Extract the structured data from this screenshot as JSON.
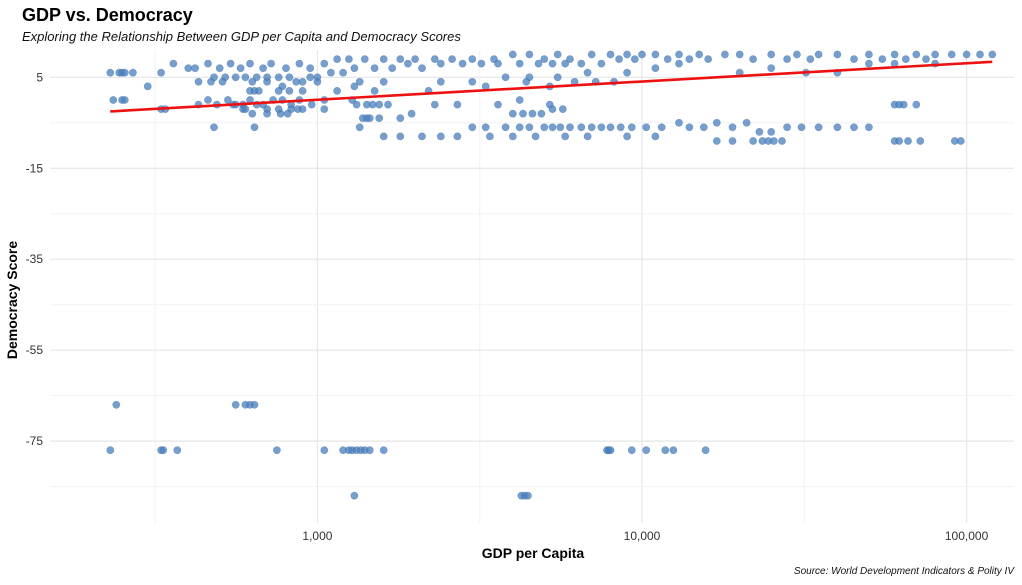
{
  "chart_data": {
    "type": "scatter",
    "title": "GDP vs. Democracy",
    "subtitle": "Exploring the Relationship Between GDP per Capita and Democracy Scores",
    "xlabel": "GDP per Capita",
    "ylabel": "Democracy Score",
    "caption": "Source: World Development Indicators & Polity IV",
    "x_scale": "log10",
    "xlim": [
      150,
      140000
    ],
    "ylim": [
      -93,
      11
    ],
    "x_ticks": [
      1000,
      10000,
      100000
    ],
    "x_tick_labels": [
      "1,000",
      "10,000",
      "100,000"
    ],
    "y_ticks": [
      5,
      -15,
      -35,
      -55,
      -75
    ],
    "y_tick_labels": [
      "5",
      "-15",
      "-35",
      "-55",
      "-75"
    ],
    "grid": true,
    "legend": "none",
    "colors": {
      "points": "#4a7fbd",
      "trend": "#ee1111"
    },
    "trend_line": {
      "x": [
        230,
        120000
      ],
      "y": [
        -2.5,
        8.4
      ]
    },
    "points": [
      [
        230,
        6
      ],
      [
        245,
        6
      ],
      [
        250,
        6
      ],
      [
        255,
        6
      ],
      [
        270,
        6
      ],
      [
        300,
        3
      ],
      [
        330,
        6
      ],
      [
        360,
        8
      ],
      [
        400,
        7
      ],
      [
        420,
        7
      ],
      [
        460,
        8
      ],
      [
        500,
        7
      ],
      [
        540,
        8
      ],
      [
        580,
        7
      ],
      [
        620,
        8
      ],
      [
        680,
        7
      ],
      [
        720,
        8
      ],
      [
        800,
        7
      ],
      [
        880,
        8
      ],
      [
        950,
        7
      ],
      [
        1050,
        8
      ],
      [
        1150,
        9
      ],
      [
        1250,
        9
      ],
      [
        1400,
        9
      ],
      [
        1600,
        9
      ],
      [
        1800,
        9
      ],
      [
        2000,
        9
      ],
      [
        2300,
        9
      ],
      [
        2600,
        9
      ],
      [
        3000,
        9
      ],
      [
        3500,
        9
      ],
      [
        4000,
        10
      ],
      [
        4500,
        10
      ],
      [
        5000,
        9
      ],
      [
        5500,
        10
      ],
      [
        6000,
        9
      ],
      [
        7000,
        10
      ],
      [
        8000,
        10
      ],
      [
        9000,
        10
      ],
      [
        10000,
        10
      ],
      [
        11000,
        10
      ],
      [
        13000,
        10
      ],
      [
        15000,
        10
      ],
      [
        18000,
        10
      ],
      [
        20000,
        10
      ],
      [
        25000,
        10
      ],
      [
        30000,
        10
      ],
      [
        35000,
        10
      ],
      [
        40000,
        10
      ],
      [
        50000,
        10
      ],
      [
        60000,
        10
      ],
      [
        70000,
        10
      ],
      [
        80000,
        10
      ],
      [
        90000,
        10
      ],
      [
        100000,
        10
      ],
      [
        110000,
        10
      ],
      [
        120000,
        10
      ],
      [
        480,
        5
      ],
      [
        520,
        5
      ],
      [
        560,
        5
      ],
      [
        600,
        5
      ],
      [
        650,
        5
      ],
      [
        700,
        5
      ],
      [
        760,
        5
      ],
      [
        820,
        5
      ],
      [
        900,
        4
      ],
      [
        950,
        5
      ],
      [
        1000,
        5
      ],
      [
        1100,
        6
      ],
      [
        1200,
        6
      ],
      [
        1300,
        7
      ],
      [
        1500,
        7
      ],
      [
        1700,
        7
      ],
      [
        1900,
        8
      ],
      [
        2100,
        7
      ],
      [
        2400,
        8
      ],
      [
        2800,
        8
      ],
      [
        3200,
        8
      ],
      [
        3600,
        8
      ],
      [
        4200,
        8
      ],
      [
        4800,
        8
      ],
      [
        5300,
        8
      ],
      [
        5800,
        8
      ],
      [
        6500,
        8
      ],
      [
        7500,
        8
      ],
      [
        8500,
        9
      ],
      [
        9500,
        9
      ],
      [
        12000,
        9
      ],
      [
        14000,
        9
      ],
      [
        16000,
        9
      ],
      [
        22000,
        9
      ],
      [
        28000,
        9
      ],
      [
        33000,
        9
      ],
      [
        45000,
        9
      ],
      [
        55000,
        9
      ],
      [
        65000,
        9
      ],
      [
        75000,
        9
      ],
      [
        430,
        4
      ],
      [
        470,
        4
      ],
      [
        510,
        4
      ],
      [
        630,
        4
      ],
      [
        700,
        4
      ],
      [
        780,
        3
      ],
      [
        860,
        4
      ],
      [
        1000,
        4
      ],
      [
        1350,
        4
      ],
      [
        1600,
        4
      ],
      [
        2400,
        4
      ],
      [
        3000,
        4
      ],
      [
        3800,
        5
      ],
      [
        4500,
        5
      ],
      [
        5500,
        5
      ],
      [
        6800,
        6
      ],
      [
        9000,
        6
      ],
      [
        11000,
        7
      ],
      [
        13000,
        8
      ],
      [
        20000,
        6
      ],
      [
        25000,
        7
      ],
      [
        32000,
        6
      ],
      [
        40000,
        6
      ],
      [
        50000,
        8
      ],
      [
        60000,
        8
      ],
      [
        80000,
        8
      ],
      [
        620,
        2
      ],
      [
        640,
        2
      ],
      [
        660,
        2
      ],
      [
        760,
        2
      ],
      [
        820,
        2
      ],
      [
        900,
        2
      ],
      [
        1150,
        2
      ],
      [
        1300,
        3
      ],
      [
        1500,
        2
      ],
      [
        2200,
        2
      ],
      [
        3300,
        3
      ],
      [
        4400,
        4
      ],
      [
        5200,
        3
      ],
      [
        6200,
        4
      ],
      [
        7200,
        4
      ],
      [
        8200,
        4
      ],
      [
        235,
        0
      ],
      [
        250,
        0
      ],
      [
        255,
        0
      ],
      [
        430,
        -1
      ],
      [
        460,
        0
      ],
      [
        490,
        -1
      ],
      [
        530,
        0
      ],
      [
        560,
        -1
      ],
      [
        620,
        0
      ],
      [
        680,
        -1
      ],
      [
        730,
        0
      ],
      [
        780,
        0
      ],
      [
        830,
        -1
      ],
      [
        880,
        0
      ],
      [
        960,
        -1
      ],
      [
        1050,
        0
      ],
      [
        1280,
        0
      ],
      [
        1420,
        -1
      ],
      [
        1550,
        -1
      ],
      [
        2300,
        -1
      ],
      [
        2700,
        -1
      ],
      [
        3600,
        -1
      ],
      [
        4200,
        0
      ],
      [
        5200,
        -1
      ],
      [
        550,
        -1
      ],
      [
        590,
        -1
      ],
      [
        650,
        -1
      ],
      [
        700,
        -2
      ],
      [
        760,
        -2
      ],
      [
        830,
        -2
      ],
      [
        900,
        -2
      ],
      [
        1050,
        -2
      ],
      [
        1320,
        -1
      ],
      [
        1480,
        -1
      ],
      [
        1650,
        -1
      ],
      [
        330,
        -2
      ],
      [
        340,
        -2
      ],
      [
        590,
        -2
      ],
      [
        600,
        -2
      ],
      [
        630,
        -3
      ],
      [
        700,
        -3
      ],
      [
        770,
        -3
      ],
      [
        810,
        -3
      ],
      [
        870,
        -2
      ],
      [
        1380,
        -4
      ],
      [
        1420,
        -4
      ],
      [
        1450,
        -4
      ],
      [
        1550,
        -4
      ],
      [
        1800,
        -4
      ],
      [
        1950,
        -3
      ],
      [
        4000,
        -3
      ],
      [
        4300,
        -3
      ],
      [
        4600,
        -3
      ],
      [
        4900,
        -3
      ],
      [
        5300,
        -2
      ],
      [
        5700,
        -2
      ],
      [
        70000,
        -1
      ],
      [
        60000,
        -1
      ],
      [
        62000,
        -1
      ],
      [
        64000,
        -1
      ],
      [
        480,
        -6
      ],
      [
        640,
        -6
      ],
      [
        1350,
        -6
      ],
      [
        3000,
        -6
      ],
      [
        3300,
        -6
      ],
      [
        3800,
        -6
      ],
      [
        4200,
        -6
      ],
      [
        4500,
        -6
      ],
      [
        5000,
        -6
      ],
      [
        5300,
        -6
      ],
      [
        5600,
        -6
      ],
      [
        6000,
        -6
      ],
      [
        6500,
        -6
      ],
      [
        7000,
        -6
      ],
      [
        7500,
        -6
      ],
      [
        8000,
        -6
      ],
      [
        8600,
        -6
      ],
      [
        9300,
        -6
      ],
      [
        10300,
        -6
      ],
      [
        11500,
        -6
      ],
      [
        13000,
        -5
      ],
      [
        14000,
        -6
      ],
      [
        15500,
        -6
      ],
      [
        17000,
        -5
      ],
      [
        19000,
        -6
      ],
      [
        21000,
        -5
      ],
      [
        23000,
        -7
      ],
      [
        25000,
        -7
      ],
      [
        28000,
        -6
      ],
      [
        31000,
        -6
      ],
      [
        35000,
        -6
      ],
      [
        40000,
        -6
      ],
      [
        45000,
        -6
      ],
      [
        50000,
        -6
      ],
      [
        1600,
        -8
      ],
      [
        1800,
        -8
      ],
      [
        2100,
        -8
      ],
      [
        2400,
        -8
      ],
      [
        2700,
        -8
      ],
      [
        3400,
        -8
      ],
      [
        4000,
        -8
      ],
      [
        4700,
        -8
      ],
      [
        5800,
        -8
      ],
      [
        6800,
        -8
      ],
      [
        9000,
        -8
      ],
      [
        11000,
        -8
      ],
      [
        17000,
        -9
      ],
      [
        19000,
        -9
      ],
      [
        22000,
        -9
      ],
      [
        23500,
        -9
      ],
      [
        24500,
        -9
      ],
      [
        25500,
        -9
      ],
      [
        27000,
        -9
      ],
      [
        60000,
        -9
      ],
      [
        62000,
        -9
      ],
      [
        66000,
        -9
      ],
      [
        72000,
        -9
      ],
      [
        92000,
        -9
      ],
      [
        96000,
        -9
      ],
      [
        240,
        -67
      ],
      [
        560,
        -67
      ],
      [
        600,
        -67
      ],
      [
        620,
        -67
      ],
      [
        640,
        -67
      ],
      [
        230,
        -77
      ],
      [
        330,
        -77
      ],
      [
        335,
        -77
      ],
      [
        370,
        -77
      ],
      [
        750,
        -77
      ],
      [
        1050,
        -77
      ],
      [
        1200,
        -77
      ],
      [
        1250,
        -77
      ],
      [
        1280,
        -77
      ],
      [
        1320,
        -77
      ],
      [
        1360,
        -77
      ],
      [
        1400,
        -77
      ],
      [
        1450,
        -77
      ],
      [
        1600,
        -77
      ],
      [
        7800,
        -77
      ],
      [
        7900,
        -77
      ],
      [
        8000,
        -77
      ],
      [
        9300,
        -77
      ],
      [
        10300,
        -77
      ],
      [
        11800,
        -77
      ],
      [
        12500,
        -77
      ],
      [
        15700,
        -77
      ],
      [
        1300,
        -87
      ],
      [
        4250,
        -87
      ],
      [
        4350,
        -87
      ],
      [
        4450,
        -87
      ]
    ]
  }
}
